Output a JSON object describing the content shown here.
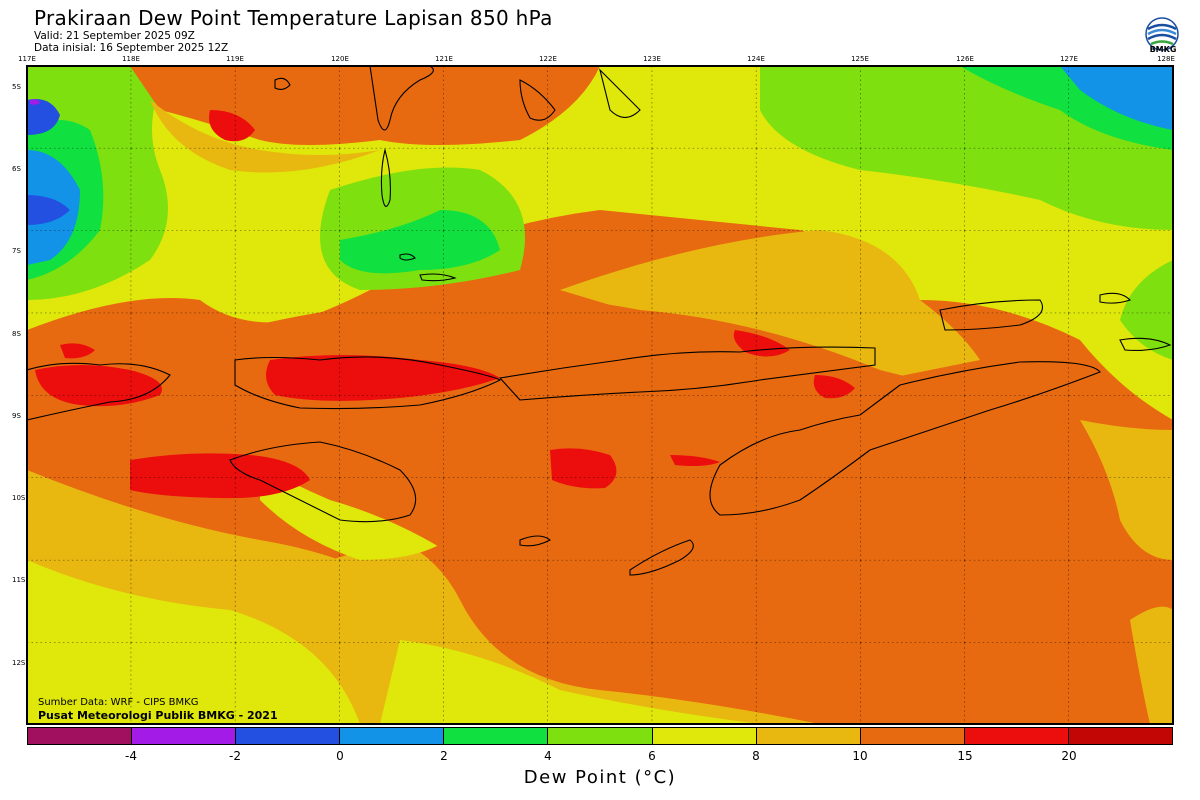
{
  "header": {
    "title": "Prakiraan Dew Point Temperature Lapisan 850 hPa",
    "valid": "Valid: 21 September 2025 09Z",
    "initial": "Data inisial: 16 September 2025 12Z",
    "logo_text": "BMKG"
  },
  "map": {
    "lon_labels": [
      "117E",
      "118E",
      "119E",
      "120E",
      "121E",
      "122E",
      "123E",
      "124E",
      "125E",
      "126E",
      "127E",
      "128E"
    ],
    "lat_labels": [
      "5S",
      "6S",
      "7S",
      "8S",
      "9S",
      "10S",
      "11S",
      "12S"
    ],
    "lon_range": [
      117,
      128
    ],
    "lat_range": [
      -4.75,
      -12.75
    ]
  },
  "credits": {
    "source": "Sumber Data: WRF - CIPS BMKG",
    "producer": "Pusat Meteorologi Publik BMKG - 2021"
  },
  "colorbar": {
    "colors": [
      "#a0105f",
      "#a21be6",
      "#2350e0",
      "#1293e8",
      "#10e040",
      "#7fe010",
      "#dfe80a",
      "#e8b810",
      "#e86a10",
      "#ec0d0d",
      "#c20606"
    ],
    "ticks": [
      "-4",
      "-2",
      "0",
      "2",
      "4",
      "6",
      "8",
      "10",
      "15",
      "20"
    ],
    "label": "Dew Point (°C)"
  }
}
